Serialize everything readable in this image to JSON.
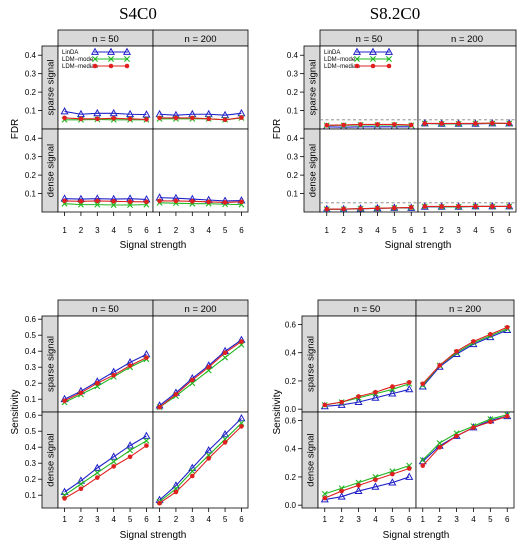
{
  "panel_titles": [
    "S4C0",
    "S8.2C0"
  ],
  "chart_data": [
    {
      "type": "line",
      "title": "S4C0",
      "ylabel": "FDR",
      "xlabel": "Signal strength",
      "facet_cols": [
        "n = 50",
        "n = 200"
      ],
      "facet_rows": [
        "sparse signal",
        "dense signal"
      ],
      "x": [
        1,
        2,
        3,
        4,
        5,
        6
      ],
      "ylim": [
        0,
        0.45
      ],
      "yticks": [
        0.1,
        0.2,
        0.3,
        0.4
      ],
      "legend": {
        "position": "top-left",
        "entries": [
          "LinDA",
          "LDM−mode",
          "LDM−median"
        ]
      },
      "reference_line": null,
      "cells": {
        "sparse signal|n = 50": {
          "LinDA": [
            0.095,
            0.08,
            0.085,
            0.085,
            0.08,
            0.078
          ],
          "LDM-mode": [
            0.05,
            0.05,
            0.052,
            0.05,
            0.05,
            0.05
          ],
          "LDM-median": [
            0.06,
            0.055,
            0.055,
            0.058,
            0.055,
            0.052
          ]
        },
        "sparse signal|n = 200": {
          "LinDA": [
            0.08,
            0.075,
            0.08,
            0.08,
            0.075,
            0.085
          ],
          "LDM-mode": [
            0.055,
            0.055,
            0.055,
            0.055,
            0.05,
            0.06
          ],
          "LDM-median": [
            0.06,
            0.06,
            0.06,
            0.055,
            0.05,
            0.062
          ]
        },
        "dense signal|n = 50": {
          "LinDA": [
            0.072,
            0.07,
            0.072,
            0.07,
            0.072,
            0.068
          ],
          "LDM-mode": [
            0.045,
            0.04,
            0.04,
            0.038,
            0.038,
            0.04
          ],
          "LDM-median": [
            0.06,
            0.058,
            0.06,
            0.058,
            0.056,
            0.055
          ]
        },
        "dense signal|n = 200": {
          "LinDA": [
            0.078,
            0.075,
            0.07,
            0.065,
            0.06,
            0.062
          ],
          "LDM-mode": [
            0.05,
            0.048,
            0.045,
            0.045,
            0.042,
            0.04
          ],
          "LDM-median": [
            0.06,
            0.06,
            0.058,
            0.055,
            0.052,
            0.055
          ]
        }
      }
    },
    {
      "type": "line",
      "title": "S8.2C0",
      "ylabel": "FDR",
      "xlabel": "Signal strength",
      "facet_cols": [
        "n = 50",
        "n = 200"
      ],
      "facet_rows": [
        "sparse signal",
        "dense signal"
      ],
      "x": [
        1,
        2,
        3,
        4,
        5,
        6
      ],
      "ylim": [
        0,
        0.45
      ],
      "yticks": [
        0.1,
        0.2,
        0.3,
        0.4
      ],
      "legend": {
        "position": "top-left",
        "entries": [
          "LinDA",
          "LDM−mode",
          "LDM−median"
        ]
      },
      "reference_line": {
        "y": 0.05,
        "style": "dashed"
      },
      "cells": {
        "sparse signal|n = 50": {
          "LinDA": [
            0.012,
            0.01,
            0.012,
            0.012,
            0.012,
            0.012
          ],
          "LDM-mode": [
            0.02,
            0.02,
            0.022,
            0.022,
            0.022,
            0.02
          ],
          "LDM-median": [
            0.02,
            0.022,
            0.025,
            0.025,
            0.025,
            0.022
          ]
        },
        "sparse signal|n = 200": {
          "LinDA": [
            0.03,
            0.028,
            0.028,
            0.028,
            0.03,
            0.03
          ],
          "LDM-mode": [
            0.03,
            0.028,
            0.028,
            0.03,
            0.03,
            0.03
          ],
          "LDM-median": [
            0.03,
            0.03,
            0.03,
            0.03,
            0.032,
            0.03
          ]
        },
        "dense signal|n = 50": {
          "LinDA": [
            0.015,
            0.015,
            0.018,
            0.02,
            0.022,
            0.022
          ],
          "LDM-mode": [
            0.015,
            0.015,
            0.018,
            0.02,
            0.022,
            0.024
          ],
          "LDM-median": [
            0.015,
            0.016,
            0.018,
            0.02,
            0.022,
            0.025
          ]
        },
        "dense signal|n = 200": {
          "LinDA": [
            0.028,
            0.028,
            0.028,
            0.03,
            0.03,
            0.03
          ],
          "LDM-mode": [
            0.03,
            0.028,
            0.028,
            0.03,
            0.03,
            0.03
          ],
          "LDM-median": [
            0.03,
            0.03,
            0.03,
            0.03,
            0.03,
            0.03
          ]
        }
      }
    },
    {
      "type": "line",
      "title": "",
      "ylabel": "Sensitivity",
      "xlabel": "Signal strength",
      "facet_cols": [
        "n = 50",
        "n = 200"
      ],
      "facet_rows": [
        "sparse signal",
        "dense signal"
      ],
      "x": [
        1,
        2,
        3,
        4,
        5,
        6
      ],
      "ylim": [
        0.02,
        0.62
      ],
      "yticks": [
        0.1,
        0.2,
        0.3,
        0.4,
        0.5,
        0.6
      ],
      "legend": null,
      "reference_line": null,
      "cells": {
        "sparse signal|n = 50": {
          "LinDA": [
            0.1,
            0.15,
            0.21,
            0.27,
            0.33,
            0.38
          ],
          "LDM-mode": [
            0.08,
            0.13,
            0.18,
            0.24,
            0.3,
            0.35
          ],
          "LDM-median": [
            0.09,
            0.14,
            0.2,
            0.25,
            0.31,
            0.36
          ]
        },
        "sparse signal|n = 200": {
          "LinDA": [
            0.06,
            0.14,
            0.23,
            0.31,
            0.4,
            0.47
          ],
          "LDM-mode": [
            0.05,
            0.12,
            0.2,
            0.28,
            0.36,
            0.44
          ],
          "LDM-median": [
            0.05,
            0.13,
            0.22,
            0.3,
            0.39,
            0.46
          ]
        },
        "dense signal|n = 50": {
          "LinDA": [
            0.12,
            0.19,
            0.27,
            0.34,
            0.41,
            0.47
          ],
          "LDM-mode": [
            0.1,
            0.17,
            0.24,
            0.31,
            0.38,
            0.44
          ],
          "LDM-median": [
            0.08,
            0.14,
            0.21,
            0.28,
            0.34,
            0.41
          ]
        },
        "dense signal|n = 200": {
          "LinDA": [
            0.07,
            0.16,
            0.27,
            0.38,
            0.48,
            0.58
          ],
          "LDM-mode": [
            0.06,
            0.14,
            0.25,
            0.35,
            0.45,
            0.55
          ],
          "LDM-median": [
            0.05,
            0.12,
            0.22,
            0.33,
            0.43,
            0.53
          ]
        }
      }
    },
    {
      "type": "line",
      "title": "",
      "ylabel": "Sensitivity",
      "xlabel": "Signal strength",
      "facet_cols": [
        "n = 50",
        "n = 200"
      ],
      "facet_rows": [
        "sparse signal",
        "dense signal"
      ],
      "x": [
        1,
        2,
        3,
        4,
        5,
        6
      ],
      "ylim": [
        -0.02,
        0.66
      ],
      "yticks": [
        0.0,
        0.2,
        0.4,
        0.6
      ],
      "legend": null,
      "reference_line": null,
      "cells": {
        "sparse signal|n = 50": {
          "LinDA": [
            0.02,
            0.03,
            0.05,
            0.08,
            0.11,
            0.14
          ],
          "LDM-mode": [
            0.03,
            0.05,
            0.08,
            0.11,
            0.14,
            0.18
          ],
          "LDM-median": [
            0.03,
            0.05,
            0.09,
            0.12,
            0.16,
            0.19
          ]
        },
        "sparse signal|n = 200": {
          "LinDA": [
            0.16,
            0.3,
            0.39,
            0.46,
            0.51,
            0.56
          ],
          "LDM-mode": [
            0.17,
            0.31,
            0.4,
            0.47,
            0.52,
            0.57
          ],
          "LDM-median": [
            0.18,
            0.31,
            0.41,
            0.48,
            0.53,
            0.58
          ]
        },
        "dense signal|n = 50": {
          "LinDA": [
            0.04,
            0.06,
            0.1,
            0.13,
            0.16,
            0.2
          ],
          "LDM-mode": [
            0.08,
            0.12,
            0.16,
            0.2,
            0.24,
            0.28
          ],
          "LDM-median": [
            0.05,
            0.1,
            0.14,
            0.18,
            0.22,
            0.26
          ]
        },
        "dense signal|n = 200": {
          "LinDA": [
            0.31,
            0.42,
            0.49,
            0.55,
            0.6,
            0.63
          ],
          "LDM-mode": [
            0.32,
            0.44,
            0.51,
            0.56,
            0.61,
            0.64
          ],
          "LDM-median": [
            0.28,
            0.41,
            0.49,
            0.55,
            0.59,
            0.63
          ]
        }
      }
    }
  ],
  "series_styles": {
    "LinDA": {
      "color": "#2020c8",
      "marker": "open-triangle"
    },
    "LDM-mode": {
      "color": "#22b822",
      "marker": "x"
    },
    "LDM-median": {
      "color": "#e02020",
      "marker": "filled-circle"
    }
  },
  "strip_color": "#d9d9d9",
  "ref_line_color": "#808080"
}
